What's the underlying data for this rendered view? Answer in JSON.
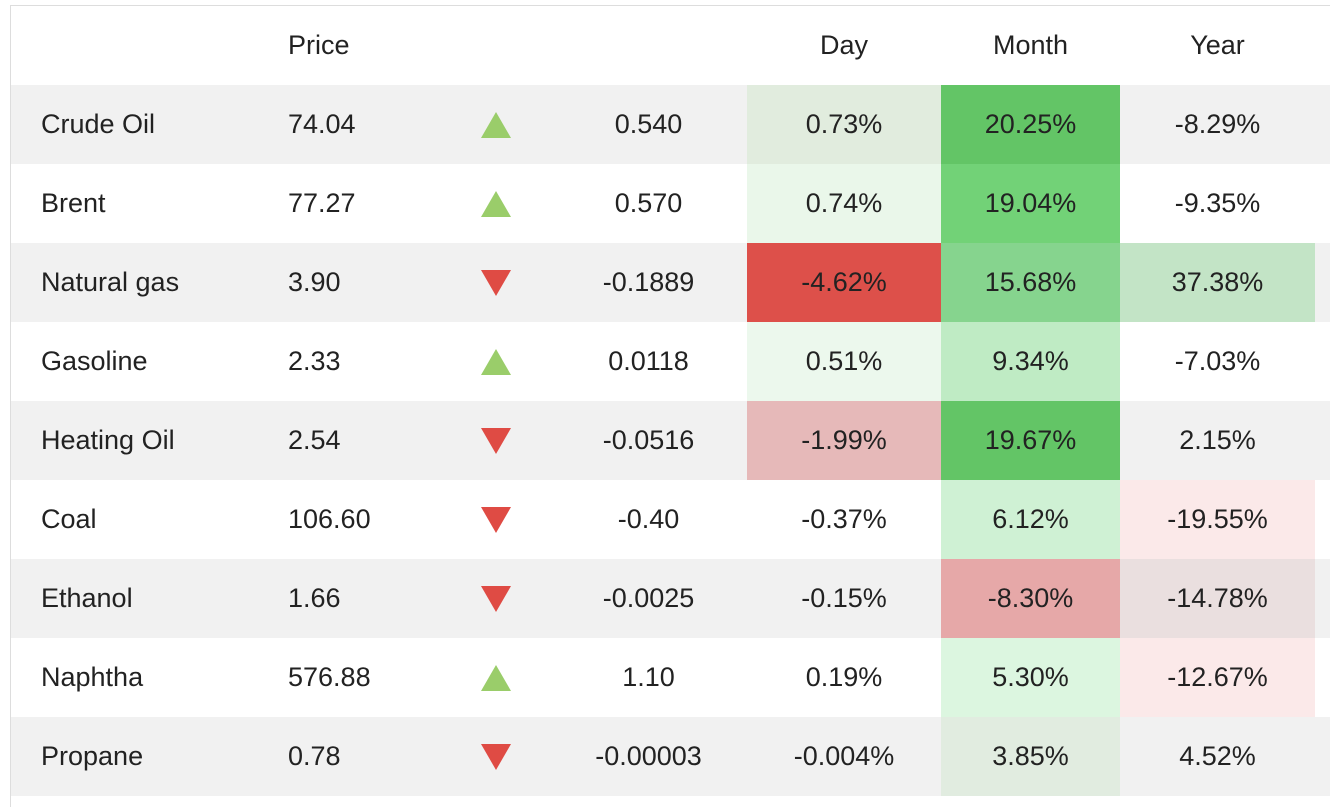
{
  "header": {
    "price": "Price",
    "day": "Day",
    "month": "Month",
    "year": "Year"
  },
  "colors": {
    "up_arrow": "#9acd6a",
    "down_arrow": "#df4b44",
    "row_stripe": "#f1f1f1"
  },
  "rows": [
    {
      "name": "Crude Oil",
      "price": "74.04",
      "direction": "up",
      "change": "0.540",
      "day": "0.73%",
      "month": "20.25%",
      "year": "-8.29%",
      "day_bg": "#e1ecde",
      "month_bg": "#63c566",
      "year_bg": ""
    },
    {
      "name": "Brent",
      "price": "77.27",
      "direction": "up",
      "change": "0.570",
      "day": "0.74%",
      "month": "19.04%",
      "year": "-9.35%",
      "day_bg": "#eaf7ea",
      "month_bg": "#72d277",
      "year_bg": ""
    },
    {
      "name": "Natural gas",
      "price": "3.90",
      "direction": "down",
      "change": "-0.1889",
      "day": "-4.62%",
      "month": "15.68%",
      "year": "37.38%",
      "day_bg": "#dd504a",
      "month_bg": "#86d48e",
      "year_bg": "#c3e4c6"
    },
    {
      "name": "Gasoline",
      "price": "2.33",
      "direction": "up",
      "change": "0.0118",
      "day": "0.51%",
      "month": "9.34%",
      "year": "-7.03%",
      "day_bg": "#ecf8ed",
      "month_bg": "#bfebc4",
      "year_bg": ""
    },
    {
      "name": "Heating Oil",
      "price": "2.54",
      "direction": "down",
      "change": "-0.0516",
      "day": "-1.99%",
      "month": "19.67%",
      "year": "2.15%",
      "day_bg": "#e6b9b9",
      "month_bg": "#63c566",
      "year_bg": ""
    },
    {
      "name": "Coal",
      "price": "106.60",
      "direction": "down",
      "change": "-0.40",
      "day": "-0.37%",
      "month": "6.12%",
      "year": "-19.55%",
      "day_bg": "",
      "month_bg": "#cff1d4",
      "year_bg": "#fbe9e9"
    },
    {
      "name": "Ethanol",
      "price": "1.66",
      "direction": "down",
      "change": "-0.0025",
      "day": "-0.15%",
      "month": "-8.30%",
      "year": "-14.78%",
      "day_bg": "",
      "month_bg": "#e6a8a8",
      "year_bg": "#eadfdf"
    },
    {
      "name": "Naphtha",
      "price": "576.88",
      "direction": "up",
      "change": "1.10",
      "day": "0.19%",
      "month": "5.30%",
      "year": "-12.67%",
      "day_bg": "",
      "month_bg": "#dcf6e0",
      "year_bg": "#fbe9e9"
    },
    {
      "name": "Propane",
      "price": "0.78",
      "direction": "down",
      "change": "-0.00003",
      "day": "-0.004%",
      "month": "3.85%",
      "year": "4.52%",
      "day_bg": "",
      "month_bg": "#e1ece0",
      "year_bg": ""
    }
  ]
}
